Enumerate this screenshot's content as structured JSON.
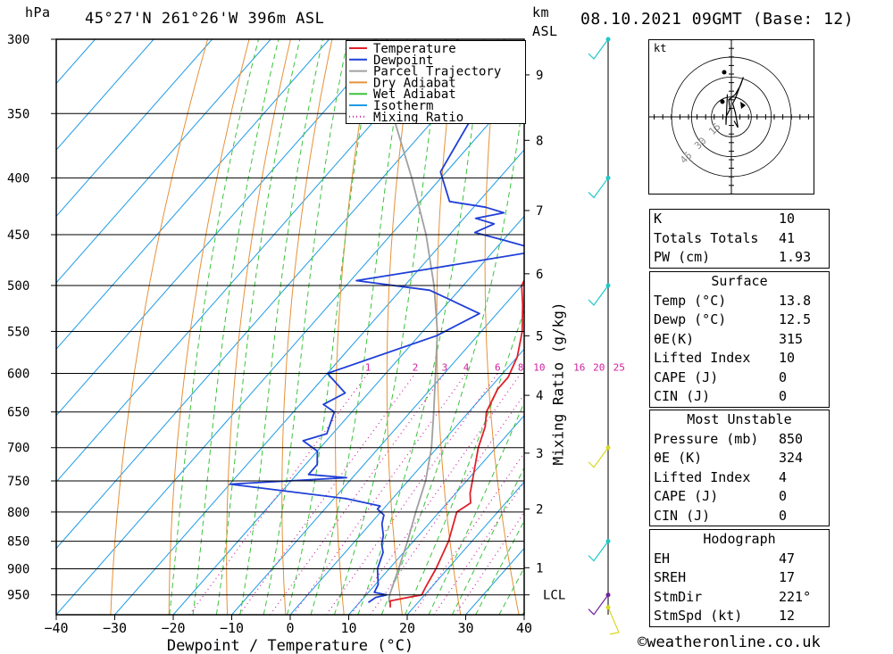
{
  "header": {
    "pressure_unit": "hPa",
    "location": "45°27'N  261°26'W  396m  ASL",
    "km_unit": "km",
    "asl": "ASL",
    "datetime": "08.10.2021  09GMT  (Base: 12)"
  },
  "chart_data": {
    "type": "skew-t",
    "xlabel": "Dewpoint / Temperature (°C)",
    "ylabel": "Mixing Ratio (g/kg)",
    "x_ticks": [
      -40,
      -30,
      -20,
      -10,
      0,
      10,
      20,
      30,
      40
    ],
    "x_tick_labels": [
      "−40",
      "−30",
      "−20",
      "−10",
      "0",
      "10",
      "20",
      "30",
      "40"
    ],
    "pressure_levels": [
      300,
      350,
      400,
      450,
      500,
      550,
      600,
      650,
      700,
      750,
      800,
      850,
      900,
      950
    ],
    "pressure_labels": [
      "300",
      "350",
      "400",
      "450",
      "500",
      "550",
      "600",
      "650",
      "700",
      "750",
      "800",
      "850",
      "900",
      "950"
    ],
    "ylim_hpa": [
      300,
      990
    ],
    "xlim_at_bottom": [
      -40,
      40
    ],
    "km_ticks": [
      {
        "km": "9",
        "p": 323
      },
      {
        "km": "8",
        "p": 370
      },
      {
        "km": "7",
        "p": 428
      },
      {
        "km": "6",
        "p": 488
      },
      {
        "km": "5",
        "p": 555
      },
      {
        "km": "4",
        "p": 628
      },
      {
        "km": "3",
        "p": 708
      },
      {
        "km": "2",
        "p": 795
      },
      {
        "km": "1",
        "p": 898
      }
    ],
    "lcl": {
      "label": "LCL",
      "p": 950
    },
    "mixing_ratio_labels": [
      "1",
      "2",
      "3",
      "4",
      "6",
      "8",
      "10",
      "16",
      "20",
      "25"
    ],
    "legend": [
      "Temperature",
      "Dewpoint",
      "Parcel Trajectory",
      "Dry Adiabat",
      "Wet Adiabat",
      "Isotherm",
      "Mixing Ratio"
    ],
    "colors": {
      "temperature": "#e0202a",
      "dewpoint": "#1f3fd8",
      "parcel": "#a0a0a0",
      "dry_adiabat": "#e69138",
      "wet_adiabat": "#3cc33c",
      "isotherm": "#1e9be6",
      "mixing_ratio": "#d020a0"
    },
    "series": [
      {
        "name": "Temperature",
        "points": [
          [
            16,
            975
          ],
          [
            15,
            962
          ],
          [
            17.5,
            955
          ],
          [
            19.5,
            950
          ],
          [
            19,
            935
          ],
          [
            18,
            900
          ],
          [
            16,
            850
          ],
          [
            13,
            800
          ],
          [
            14,
            785
          ],
          [
            12.5,
            770
          ],
          [
            11,
            750
          ],
          [
            7,
            700
          ],
          [
            5,
            670
          ],
          [
            3,
            650
          ],
          [
            1.5,
            620
          ],
          [
            1.5,
            605
          ],
          [
            0,
            580
          ],
          [
            -3,
            550
          ],
          [
            -7,
            520
          ],
          [
            -10,
            500
          ],
          [
            -12,
            470
          ],
          [
            -16,
            450
          ],
          [
            -21,
            425
          ],
          [
            -22,
            415
          ],
          [
            -26,
            390
          ],
          [
            -30,
            365
          ],
          [
            -35,
            340
          ],
          [
            -41,
            320
          ],
          [
            -46,
            300
          ]
        ]
      },
      {
        "name": "Dewpoint",
        "points": [
          [
            11.5,
            965
          ],
          [
            12,
            955
          ],
          [
            13.5,
            950
          ],
          [
            11,
            945
          ],
          [
            10.5,
            930
          ],
          [
            8,
            900
          ],
          [
            6.5,
            870
          ],
          [
            5,
            855
          ],
          [
            4,
            840
          ],
          [
            2,
            820
          ],
          [
            1,
            805
          ],
          [
            0,
            800
          ],
          [
            -1,
            795
          ],
          [
            -1,
            790
          ],
          [
            -8,
            778
          ],
          [
            -30,
            755
          ],
          [
            -11,
            745
          ],
          [
            -18,
            740
          ],
          [
            -18,
            725
          ],
          [
            -20,
            705
          ],
          [
            -24,
            690
          ],
          [
            -21,
            680
          ],
          [
            -23,
            650
          ],
          [
            -26,
            640
          ],
          [
            -24,
            625
          ],
          [
            -30,
            600
          ],
          [
            -17,
            555
          ],
          [
            -13,
            530
          ],
          [
            -25,
            505
          ],
          [
            -39,
            495
          ],
          [
            -30,
            485
          ],
          [
            -12,
            465
          ],
          [
            -20,
            455
          ],
          [
            -26,
            448
          ],
          [
            -24,
            440
          ],
          [
            -28,
            435
          ],
          [
            -24,
            430
          ],
          [
            -28,
            425
          ],
          [
            -35,
            420
          ],
          [
            -41,
            395
          ],
          [
            -44,
            350
          ],
          [
            -48,
            340
          ],
          [
            -52,
            325
          ],
          [
            -56,
            310
          ],
          [
            -58,
            300
          ]
        ]
      },
      {
        "name": "Parcel Trajectory",
        "points": [
          [
            15,
            965
          ],
          [
            14,
            950
          ],
          [
            11.6,
            900
          ],
          [
            9,
            850
          ],
          [
            6,
            800
          ],
          [
            3,
            750
          ],
          [
            -1,
            700
          ],
          [
            -6,
            650
          ],
          [
            -11.5,
            600
          ],
          [
            -17.5,
            550
          ],
          [
            -25,
            500
          ],
          [
            -34,
            450
          ],
          [
            -45,
            400
          ],
          [
            -58,
            350
          ],
          [
            -72,
            300
          ]
        ]
      }
    ]
  },
  "hodograph": {
    "unit": "kt",
    "ring_labels": [
      "15",
      "30",
      "45"
    ],
    "ring_speeds": [
      15,
      30,
      45
    ],
    "wind_uv": [
      [
        2,
        -3
      ],
      [
        5,
        -8
      ],
      [
        3,
        3
      ],
      [
        1,
        10
      ],
      [
        3,
        14
      ],
      [
        9,
        30
      ],
      [
        7,
        24
      ],
      [
        3,
        17
      ],
      [
        -2,
        13
      ],
      [
        -1,
        6
      ],
      [
        -4,
        0
      ],
      [
        -4,
        -6
      ],
      [
        -3,
        17
      ]
    ]
  },
  "stats": {
    "top": [
      {
        "label": "K",
        "value": "10"
      },
      {
        "label": "Totals Totals",
        "value": "41"
      },
      {
        "label": "PW (cm)",
        "value": "1.93"
      }
    ],
    "surface": {
      "title": "Surface",
      "rows": [
        {
          "label": "Temp (°C)",
          "value": "13.8"
        },
        {
          "label": "Dewp (°C)",
          "value": "12.5"
        },
        {
          "label": "θE(K)",
          "value": "315"
        },
        {
          "label": "Lifted Index",
          "value": "10"
        },
        {
          "label": "CAPE (J)",
          "value": "0"
        },
        {
          "label": "CIN (J)",
          "value": "0"
        }
      ]
    },
    "most_unstable": {
      "title": "Most Unstable",
      "rows": [
        {
          "label": "Pressure (mb)",
          "value": "850"
        },
        {
          "label": "θE (K)",
          "value": "324"
        },
        {
          "label": "Lifted Index",
          "value": "4"
        },
        {
          "label": "CAPE (J)",
          "value": "0"
        },
        {
          "label": "CIN (J)",
          "value": "0"
        }
      ]
    },
    "hodograph": {
      "title": "Hodograph",
      "rows": [
        {
          "label": "EH",
          "value": "47"
        },
        {
          "label": "SREH",
          "value": "17"
        },
        {
          "label": "StmDir",
          "value": "221°"
        },
        {
          "label": "StmSpd (kt)",
          "value": "12"
        }
      ]
    }
  },
  "footer": {
    "copyright": "©weatheronline.co.uk"
  }
}
